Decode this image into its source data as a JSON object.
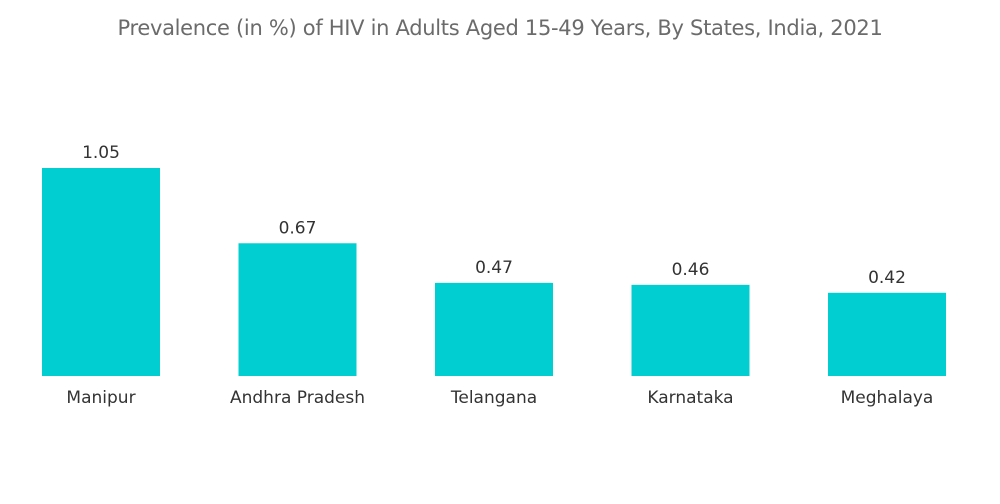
{
  "chart_data": {
    "type": "bar",
    "title": "Prevalence (in %) of HIV in Adults Aged 15-49 Years, By States, India, 2021",
    "categories": [
      "Manipur",
      "Andhra Pradesh",
      "Telangana",
      "Karnataka",
      "Meghalaya"
    ],
    "values": [
      1.05,
      0.67,
      0.47,
      0.46,
      0.42
    ],
    "data_labels": [
      "1.05",
      "0.67",
      "0.47",
      "0.46",
      "0.42"
    ],
    "xlabel": "",
    "ylabel": "",
    "ylim": [
      0,
      1.05
    ],
    "grid": false,
    "bar_color": "#00CED1"
  }
}
